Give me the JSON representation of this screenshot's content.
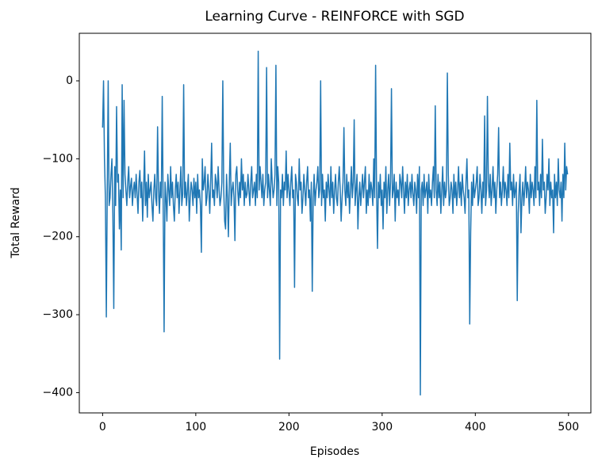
{
  "chart_data": {
    "type": "line",
    "title": "Learning Curve - REINFORCE with SGD",
    "x_label": "Episodes",
    "y_label": "Total Reward",
    "color": "#1f77b4",
    "grid": false,
    "xlim": [
      -25,
      524
    ],
    "ylim": [
      -426,
      61
    ],
    "xticks": [
      0,
      100,
      200,
      300,
      400,
      500
    ],
    "yticks": [
      {
        "value": -400,
        "label": "−400"
      },
      {
        "value": -300,
        "label": "−300"
      },
      {
        "value": -200,
        "label": "−200"
      },
      {
        "value": -100,
        "label": "−100"
      },
      0
    ],
    "x": [
      0,
      1,
      2,
      3,
      4,
      5,
      6,
      7,
      8,
      9,
      10,
      11,
      12,
      13,
      14,
      15,
      16,
      17,
      18,
      19,
      20,
      21,
      22,
      23,
      24,
      25,
      26,
      27,
      28,
      29,
      30,
      31,
      32,
      33,
      34,
      35,
      36,
      37,
      38,
      39,
      40,
      41,
      42,
      43,
      44,
      45,
      46,
      47,
      48,
      49,
      50,
      51,
      52,
      53,
      54,
      55,
      56,
      57,
      58,
      59,
      60,
      61,
      62,
      63,
      64,
      65,
      66,
      67,
      68,
      69,
      70,
      71,
      72,
      73,
      74,
      75,
      76,
      77,
      78,
      79,
      80,
      81,
      82,
      83,
      84,
      85,
      86,
      87,
      88,
      89,
      90,
      91,
      92,
      93,
      94,
      95,
      96,
      97,
      98,
      99,
      100,
      101,
      102,
      103,
      104,
      105,
      106,
      107,
      108,
      109,
      110,
      111,
      112,
      113,
      114,
      115,
      116,
      117,
      118,
      119,
      120,
      121,
      122,
      123,
      124,
      125,
      126,
      127,
      128,
      129,
      130,
      131,
      132,
      133,
      134,
      135,
      136,
      137,
      138,
      139,
      140,
      141,
      142,
      143,
      144,
      145,
      146,
      147,
      148,
      149,
      150,
      151,
      152,
      153,
      154,
      155,
      156,
      157,
      158,
      159,
      160,
      161,
      162,
      163,
      164,
      165,
      166,
      167,
      168,
      169,
      170,
      171,
      172,
      173,
      174,
      175,
      176,
      177,
      178,
      179,
      180,
      181,
      182,
      183,
      184,
      185,
      186,
      187,
      188,
      189,
      190,
      191,
      192,
      193,
      194,
      195,
      196,
      197,
      198,
      199,
      200,
      201,
      202,
      203,
      204,
      205,
      206,
      207,
      208,
      209,
      210,
      211,
      212,
      213,
      214,
      215,
      216,
      217,
      218,
      219,
      220,
      221,
      222,
      223,
      224,
      225,
      226,
      227,
      228,
      229,
      230,
      231,
      232,
      233,
      234,
      235,
      236,
      237,
      238,
      239,
      240,
      241,
      242,
      243,
      244,
      245,
      246,
      247,
      248,
      249,
      250,
      251,
      252,
      253,
      254,
      255,
      256,
      257,
      258,
      259,
      260,
      261,
      262,
      263,
      264,
      265,
      266,
      267,
      268,
      269,
      270,
      271,
      272,
      273,
      274,
      275,
      276,
      277,
      278,
      279,
      280,
      281,
      282,
      283,
      284,
      285,
      286,
      287,
      288,
      289,
      290,
      291,
      292,
      293,
      294,
      295,
      296,
      297,
      298,
      299,
      300,
      301,
      302,
      303,
      304,
      305,
      306,
      307,
      308,
      309,
      310,
      311,
      312,
      313,
      314,
      315,
      316,
      317,
      318,
      319,
      320,
      321,
      322,
      323,
      324,
      325,
      326,
      327,
      328,
      329,
      330,
      331,
      332,
      333,
      334,
      335,
      336,
      337,
      338,
      339,
      340,
      341,
      342,
      343,
      344,
      345,
      346,
      347,
      348,
      349,
      350,
      351,
      352,
      353,
      354,
      355,
      356,
      357,
      358,
      359,
      360,
      361,
      362,
      363,
      364,
      365,
      366,
      367,
      368,
      369,
      370,
      371,
      372,
      373,
      374,
      375,
      376,
      377,
      378,
      379,
      380,
      381,
      382,
      383,
      384,
      385,
      386,
      387,
      388,
      389,
      390,
      391,
      392,
      393,
      394,
      395,
      396,
      397,
      398,
      399,
      400,
      401,
      402,
      403,
      404,
      405,
      406,
      407,
      408,
      409,
      410,
      411,
      412,
      413,
      414,
      415,
      416,
      417,
      418,
      419,
      420,
      421,
      422,
      423,
      424,
      425,
      426,
      427,
      428,
      429,
      430,
      431,
      432,
      433,
      434,
      435,
      436,
      437,
      438,
      439,
      440,
      441,
      442,
      443,
      444,
      445,
      446,
      447,
      448,
      449,
      450,
      451,
      452,
      453,
      454,
      455,
      456,
      457,
      458,
      459,
      460,
      461,
      462,
      463,
      464,
      465,
      466,
      467,
      468,
      469,
      470,
      471,
      472,
      473,
      474,
      475,
      476,
      477,
      478,
      479,
      480,
      481,
      482,
      483,
      484,
      485,
      486,
      487,
      488,
      489,
      490,
      491,
      492,
      493,
      494,
      495,
      496,
      497,
      498,
      499
    ],
    "values": [
      -60,
      0,
      -100,
      -150,
      -303,
      -140,
      0,
      -160,
      -150,
      -120,
      -100,
      -170,
      -292,
      -110,
      -160,
      -33,
      -130,
      -120,
      -190,
      -140,
      -217,
      -5,
      -150,
      -25,
      -120,
      -140,
      -160,
      -130,
      -110,
      -150,
      -135,
      -125,
      -160,
      -140,
      -130,
      -150,
      -120,
      -145,
      -170,
      -130,
      -115,
      -150,
      -130,
      -180,
      -140,
      -90,
      -160,
      -130,
      -175,
      -120,
      -150,
      -140,
      -130,
      -160,
      -180,
      -140,
      -120,
      -150,
      -160,
      -59,
      -140,
      -170,
      -130,
      -150,
      -20,
      -160,
      -322,
      -130,
      -150,
      -180,
      -120,
      -140,
      -160,
      -110,
      -150,
      -130,
      -160,
      -180,
      -140,
      -120,
      -150,
      -130,
      -170,
      -140,
      -110,
      -160,
      -145,
      -5,
      -150,
      -130,
      -160,
      -140,
      -120,
      -180,
      -150,
      -130,
      -140,
      -160,
      -125,
      -150,
      -130,
      -170,
      -120,
      -150,
      -140,
      -160,
      -220,
      -100,
      -140,
      -130,
      -110,
      -160,
      -150,
      -120,
      -140,
      -170,
      -130,
      -80,
      -150,
      -140,
      -160,
      -120,
      -130,
      -150,
      -110,
      -140,
      -160,
      -150,
      -130,
      0,
      -140,
      -180,
      -190,
      -120,
      -150,
      -200,
      -130,
      -80,
      -160,
      -140,
      -130,
      -150,
      -205,
      -120,
      -110,
      -140,
      -160,
      -130,
      -150,
      -100,
      -140,
      -120,
      -160,
      -130,
      -150,
      -145,
      -120,
      -140,
      -160,
      -130,
      -110,
      -150,
      -140,
      -130,
      -160,
      -120,
      -150,
      38,
      -140,
      -110,
      -130,
      -150,
      -120,
      -160,
      -140,
      -130,
      17,
      -150,
      -120,
      -140,
      -160,
      -100,
      -130,
      -150,
      -140,
      -120,
      20,
      -160,
      -110,
      -130,
      -357,
      -140,
      -150,
      -120,
      -160,
      -130,
      -140,
      -90,
      -150,
      -120,
      -140,
      -160,
      -130,
      -110,
      -150,
      -140,
      -265,
      -120,
      -130,
      -150,
      -160,
      -100,
      -140,
      -130,
      -170,
      -150,
      -120,
      -140,
      -160,
      -130,
      -110,
      -150,
      -140,
      -180,
      -130,
      -270,
      -150,
      -120,
      -160,
      -140,
      -130,
      -110,
      -150,
      -140,
      0,
      -160,
      -120,
      -150,
      -140,
      -180,
      -130,
      -150,
      -120,
      -140,
      -160,
      -110,
      -150,
      -130,
      -170,
      -140,
      -120,
      -150,
      -160,
      -130,
      -110,
      -140,
      -180,
      -150,
      -130,
      -60,
      -140,
      -160,
      -120,
      -150,
      -130,
      -170,
      -140,
      -110,
      -150,
      -130,
      -50,
      -160,
      -140,
      -120,
      -190,
      -150,
      -130,
      -160,
      -140,
      -120,
      -150,
      -130,
      -110,
      -170,
      -140,
      -160,
      -120,
      -150,
      -130,
      -140,
      -160,
      -100,
      -150,
      20,
      -140,
      -215,
      -130,
      -150,
      -120,
      -160,
      -140,
      -190,
      -130,
      -150,
      -110,
      -170,
      -140,
      -120,
      -160,
      -130,
      -10,
      -150,
      -140,
      -120,
      -180,
      -130,
      -150,
      -140,
      -160,
      -120,
      -130,
      -150,
      -110,
      -140,
      -170,
      -130,
      -150,
      -120,
      -160,
      -140,
      -130,
      -150,
      -120,
      -145,
      -160,
      -130,
      -140,
      -170,
      -120,
      -150,
      -110,
      -403,
      -140,
      -130,
      -160,
      -120,
      -150,
      -140,
      -130,
      -170,
      -120,
      -150,
      -140,
      -160,
      -130,
      -110,
      -150,
      -32,
      -140,
      -160,
      -120,
      -150,
      -130,
      -170,
      -140,
      -110,
      -160,
      -130,
      -150,
      -140,
      10,
      -120,
      -160,
      -150,
      -130,
      -140,
      -170,
      -120,
      -150,
      -130,
      -160,
      -140,
      -110,
      -150,
      -130,
      -160,
      -120,
      -140,
      -150,
      -170,
      -130,
      -100,
      -150,
      -140,
      -312,
      -195,
      -130,
      -160,
      -120,
      -150,
      -140,
      -130,
      -110,
      -160,
      -150,
      -120,
      -140,
      -170,
      -130,
      -150,
      -45,
      -160,
      -140,
      -20,
      -130,
      -150,
      -120,
      -160,
      -140,
      -110,
      -150,
      -130,
      -170,
      -140,
      -120,
      -60,
      -150,
      -130,
      -160,
      -140,
      -110,
      -150,
      -130,
      -140,
      -160,
      -120,
      -150,
      -80,
      -140,
      -130,
      -160,
      -120,
      -150,
      -140,
      -130,
      -282,
      -170,
      -140,
      -120,
      -195,
      -150,
      -130,
      -160,
      -140,
      -110,
      -150,
      -130,
      -140,
      -170,
      -120,
      -150,
      -130,
      -140,
      -160,
      -110,
      -150,
      -25,
      -140,
      -130,
      -160,
      -120,
      -150,
      -75,
      -140,
      -130,
      -170,
      -150,
      -120,
      -140,
      -100,
      -160,
      -130,
      -150,
      -140,
      -195,
      -120,
      -150,
      -130,
      -160,
      -100,
      -140,
      -150,
      -130,
      -180,
      -120,
      -150,
      -80,
      -140,
      -110,
      -120
    ]
  }
}
